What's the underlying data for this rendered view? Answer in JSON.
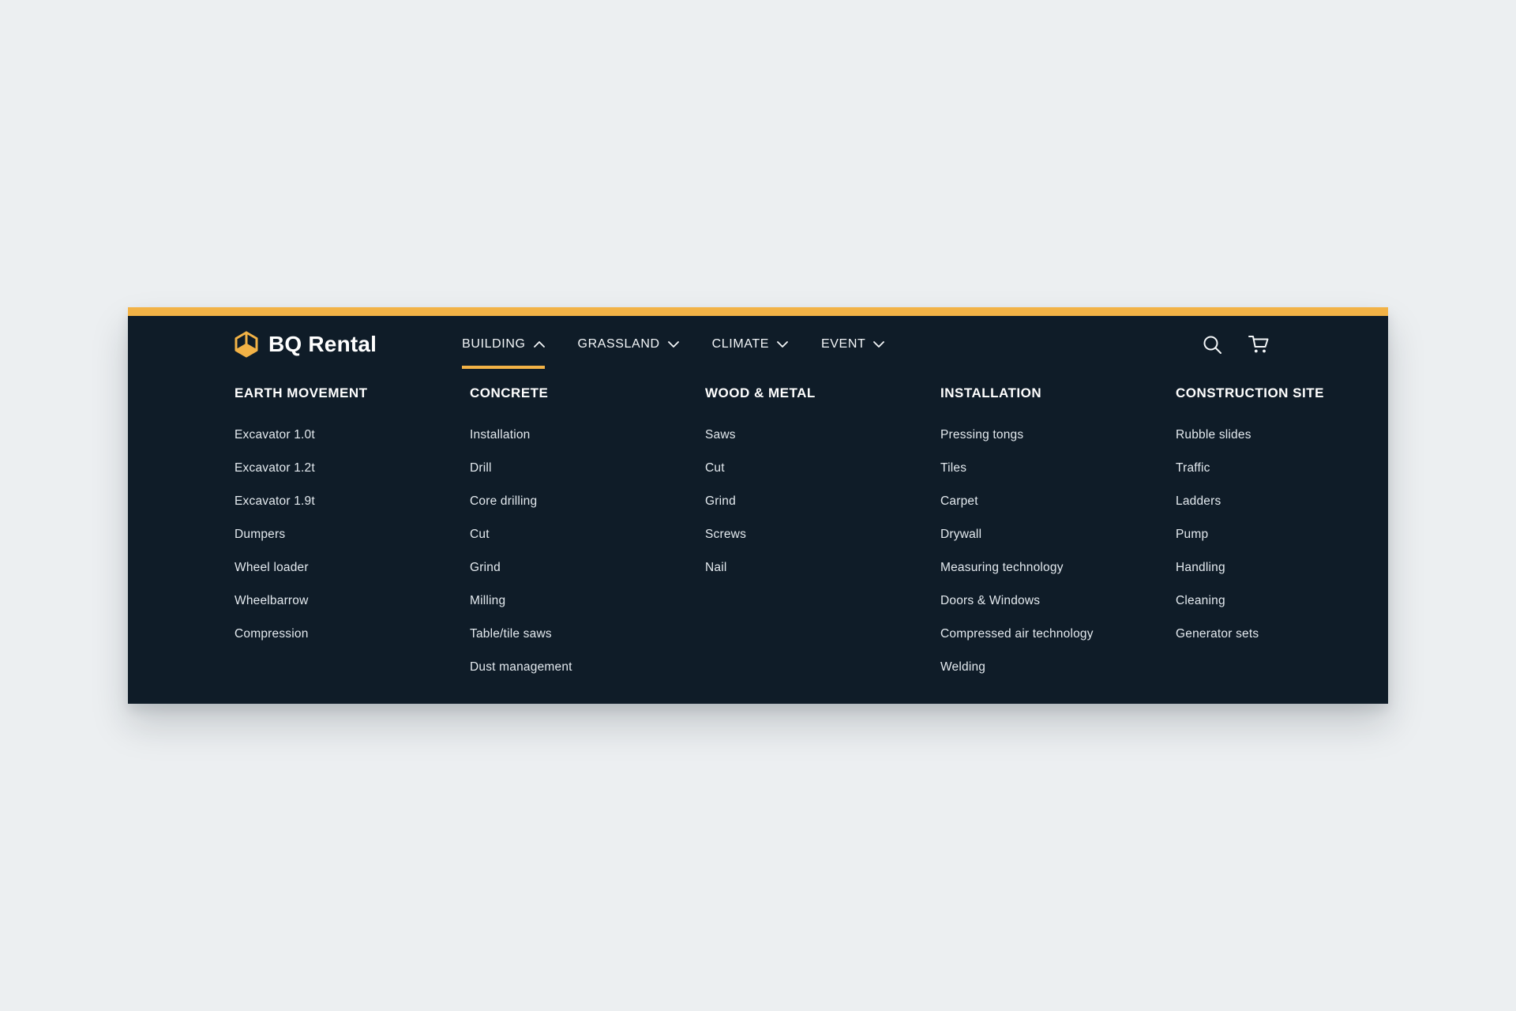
{
  "page": {
    "background_color": "#ECEFF1"
  },
  "panel": {
    "background_color": "#0F1C28",
    "accent_color": "#F2B246"
  },
  "brand": {
    "name": "BQ Rental"
  },
  "nav": {
    "items": [
      {
        "label": "BUILDING",
        "chevron": "up",
        "active": true
      },
      {
        "label": "GRASSLAND",
        "chevron": "down",
        "active": false
      },
      {
        "label": "CLIMATE",
        "chevron": "down",
        "active": false
      },
      {
        "label": "EVENT",
        "chevron": "down",
        "active": false
      }
    ]
  },
  "header_icons": [
    {
      "name": "search-icon"
    },
    {
      "name": "cart-icon"
    }
  ],
  "menu": {
    "columns": [
      {
        "heading": "EARTH MOVEMENT",
        "items": [
          "Excavator 1.0t",
          "Excavator 1.2t",
          "Excavator 1.9t",
          "Dumpers",
          "Wheel loader",
          "Wheelbarrow",
          "Compression"
        ]
      },
      {
        "heading": "CONCRETE",
        "items": [
          "Installation",
          "Drill",
          "Core drilling",
          "Cut",
          "Grind",
          "Milling",
          "Table/tile saws",
          "Dust management"
        ]
      },
      {
        "heading": "WOOD & METAL",
        "items": [
          "Saws",
          "Cut",
          "Grind",
          "Screws",
          "Nail"
        ]
      },
      {
        "heading": "INSTALLATION",
        "items": [
          "Pressing tongs",
          "Tiles",
          "Carpet",
          "Drywall",
          "Measuring technology",
          "Doors & Windows",
          "Compressed air technology",
          "Welding"
        ]
      },
      {
        "heading": "CONSTRUCTION SITE",
        "items": [
          "Rubble slides",
          "Traffic",
          "Ladders",
          "Pump",
          "Handling",
          "Cleaning",
          "Generator sets"
        ]
      }
    ]
  }
}
